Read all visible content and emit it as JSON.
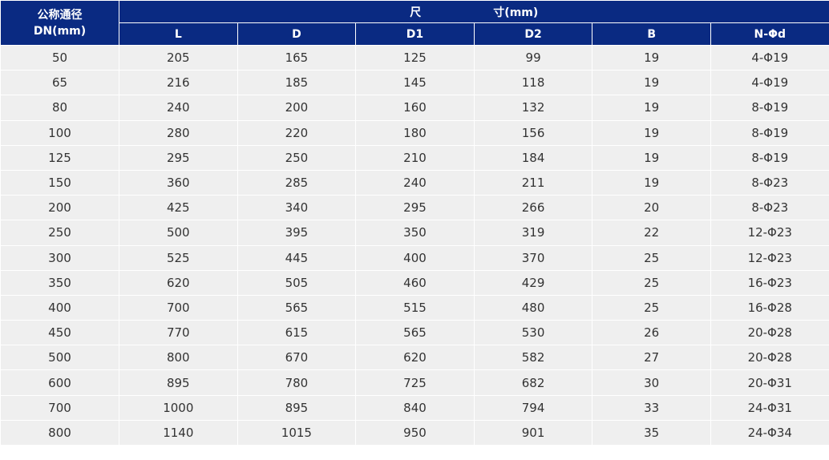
{
  "header": {
    "dn_line1": "公称通径",
    "dn_line2": "DN(mm)",
    "dim_part1": "尺",
    "dim_part2": "寸(mm)",
    "columns": [
      "L",
      "D",
      "D1",
      "D2",
      "B",
      "N-Φd"
    ]
  },
  "rows": [
    [
      "50",
      "205",
      "165",
      "125",
      "99",
      "19",
      "4-Φ19"
    ],
    [
      "65",
      "216",
      "185",
      "145",
      "118",
      "19",
      "4-Φ19"
    ],
    [
      "80",
      "240",
      "200",
      "160",
      "132",
      "19",
      "8-Φ19"
    ],
    [
      "100",
      "280",
      "220",
      "180",
      "156",
      "19",
      "8-Φ19"
    ],
    [
      "125",
      "295",
      "250",
      "210",
      "184",
      "19",
      "8-Φ19"
    ],
    [
      "150",
      "360",
      "285",
      "240",
      "211",
      "19",
      "8-Φ23"
    ],
    [
      "200",
      "425",
      "340",
      "295",
      "266",
      "20",
      "8-Φ23"
    ],
    [
      "250",
      "500",
      "395",
      "350",
      "319",
      "22",
      "12-Φ23"
    ],
    [
      "300",
      "525",
      "445",
      "400",
      "370",
      "25",
      "12-Φ23"
    ],
    [
      "350",
      "620",
      "505",
      "460",
      "429",
      "25",
      "16-Φ23"
    ],
    [
      "400",
      "700",
      "565",
      "515",
      "480",
      "25",
      "16-Φ28"
    ],
    [
      "450",
      "770",
      "615",
      "565",
      "530",
      "26",
      "20-Φ28"
    ],
    [
      "500",
      "800",
      "670",
      "620",
      "582",
      "27",
      "20-Φ28"
    ],
    [
      "600",
      "895",
      "780",
      "725",
      "682",
      "30",
      "20-Φ31"
    ],
    [
      "700",
      "1000",
      "895",
      "840",
      "794",
      "33",
      "24-Φ31"
    ],
    [
      "800",
      "1140",
      "1015",
      "950",
      "901",
      "35",
      "24-Φ34"
    ]
  ],
  "colors": {
    "header_bg": "#0a2a82",
    "row_bg": "#efefef"
  }
}
